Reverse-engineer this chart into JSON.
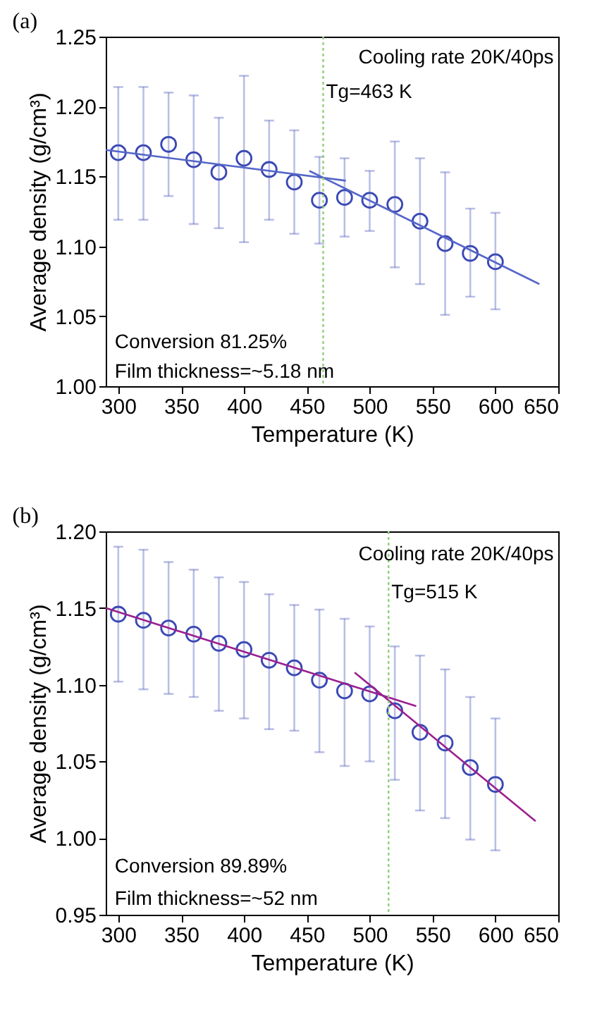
{
  "chart_data": [
    {
      "type": "scatter",
      "title": "(a)",
      "xlabel": "Temperature (K)",
      "ylabel": "Average density (g/cm³)",
      "x": [
        300,
        320,
        340,
        360,
        380,
        400,
        420,
        440,
        460,
        480,
        500,
        520,
        540,
        560,
        580,
        600
      ],
      "xlim": [
        290,
        650
      ],
      "xticks": [
        300,
        350,
        400,
        450,
        500,
        550,
        600,
        650
      ],
      "ylim": [
        1.0,
        1.25
      ],
      "yticks": [
        {
          "value": 1,
          "label": "1.00"
        },
        1.05,
        {
          "value": 1.1,
          "label": "1.10"
        },
        1.15,
        {
          "value": 1.2,
          "label": "1.20"
        },
        1.25
      ],
      "marker": "circle",
      "series": [
        {
          "color": "#3a48b4",
          "values": [
            1.167,
            1.167,
            1.173,
            1.162,
            1.153,
            1.163,
            1.155,
            1.146,
            1.133,
            1.135,
            1.133,
            1.13,
            1.118,
            1.102,
            1.095,
            1.089
          ],
          "errors": [
            [
              1.119,
              1.214
            ],
            [
              1.119,
              1.214
            ],
            [
              1.136,
              1.21
            ],
            [
              1.116,
              1.208
            ],
            [
              1.113,
              1.192
            ],
            [
              1.103,
              1.222
            ],
            [
              1.119,
              1.19
            ],
            [
              1.109,
              1.183
            ],
            [
              1.102,
              1.164
            ],
            [
              1.107,
              1.163
            ],
            [
              1.111,
              1.154
            ],
            [
              1.085,
              1.175
            ],
            [
              1.073,
              1.163
            ],
            [
              1.051,
              1.153
            ],
            [
              1.064,
              1.127
            ],
            [
              1.055,
              1.124
            ]
          ]
        },
        {
          "type": "line",
          "marker": "none",
          "color": "#5566c8",
          "x": [
            290,
            481
          ],
          "values": [
            1.169,
            1.147
          ]
        },
        {
          "type": "line",
          "marker": "none",
          "color": "#5566c8",
          "x": [
            452,
            635
          ],
          "values": [
            1.154,
            1.073
          ]
        }
      ],
      "ref_lines": [
        {
          "axis": "x",
          "value": 463,
          "label": "Tg=463 K",
          "color": "#8fd07a",
          "line_style": "dotted"
        }
      ],
      "annotations": [
        "Cooling rate 20K/40ps",
        "Conversion 81.25%",
        "Film thickness=~5.18 nm"
      ]
    },
    {
      "type": "scatter",
      "title": "(b)",
      "xlabel": "Temperature (K)",
      "ylabel": "Average density (g/cm³)",
      "x": [
        300,
        320,
        340,
        360,
        380,
        400,
        420,
        440,
        460,
        480,
        500,
        520,
        540,
        560,
        580,
        600
      ],
      "xlim": [
        290,
        650
      ],
      "xticks": [
        300,
        350,
        400,
        450,
        500,
        550,
        600,
        650
      ],
      "ylim": [
        0.95,
        1.2
      ],
      "yticks": [
        0.95,
        {
          "value": 1,
          "label": "1.00"
        },
        1.05,
        {
          "value": 1.1,
          "label": "1.10"
        },
        1.15,
        {
          "value": 1.2,
          "label": "1.20"
        }
      ],
      "marker": "circle",
      "series": [
        {
          "color": "#3a48b4",
          "values": [
            1.146,
            1.142,
            1.137,
            1.133,
            1.127,
            1.123,
            1.116,
            1.111,
            1.103,
            1.096,
            1.094,
            1.083,
            1.069,
            1.062,
            1.046,
            1.035
          ],
          "errors": [
            [
              1.102,
              1.19
            ],
            [
              1.097,
              1.188
            ],
            [
              1.094,
              1.18
            ],
            [
              1.092,
              1.175
            ],
            [
              1.083,
              1.17
            ],
            [
              1.078,
              1.167
            ],
            [
              1.071,
              1.159
            ],
            [
              1.07,
              1.152
            ],
            [
              1.056,
              1.149
            ],
            [
              1.047,
              1.143
            ],
            [
              1.05,
              1.138
            ],
            [
              1.038,
              1.125
            ],
            [
              1.018,
              1.119
            ],
            [
              1.013,
              1.11
            ],
            [
              0.999,
              1.092
            ],
            [
              0.992,
              1.078
            ]
          ]
        },
        {
          "type": "line",
          "marker": "none",
          "color": "#9b2090",
          "x": [
            290,
            537
          ],
          "values": [
            1.15,
            1.086
          ]
        },
        {
          "type": "line",
          "marker": "none",
          "color": "#9b2090",
          "x": [
            488,
            632
          ],
          "values": [
            1.108,
            1.011
          ]
        }
      ],
      "ref_lines": [
        {
          "axis": "x",
          "value": 515,
          "label": "Tg=515 K",
          "color": "#8fd07a",
          "line_style": "dotted"
        }
      ],
      "annotations": [
        "Cooling rate 20K/40ps",
        "Conversion 89.89%",
        "Film thickness=~52 nm"
      ]
    }
  ]
}
